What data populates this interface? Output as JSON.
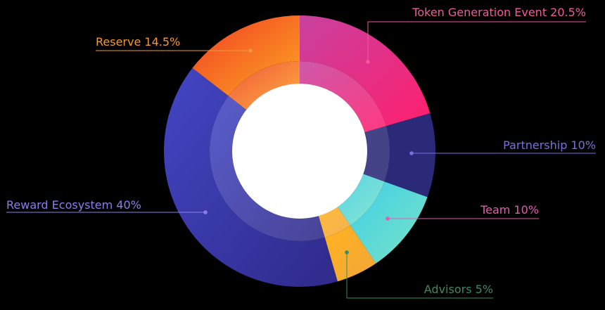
{
  "chart_data": {
    "type": "pie",
    "variant": "donut",
    "title": "",
    "legend": "none",
    "slices": [
      {
        "key": "tge",
        "label": "Token Generation Event  20.5%",
        "value": 20.5,
        "colors": [
          "#c8419f",
          "#ff1f6e"
        ],
        "label_color": "#ef5a9b"
      },
      {
        "key": "partnership",
        "label": "Partnership 10%",
        "value": 10,
        "colors": [
          "#2b2a78",
          "#2b2a78"
        ],
        "label_color": "#7a6fe0"
      },
      {
        "key": "team",
        "label": "Team  10%",
        "value": 10,
        "colors": [
          "#3fcfe6",
          "#7be3c6"
        ],
        "label_color": "#e25db0"
      },
      {
        "key": "advisors",
        "label": "Advisors 5%",
        "value": 5,
        "colors": [
          "#ffb31f",
          "#f2a63a"
        ],
        "label_color": "#3a8a64"
      },
      {
        "key": "reward",
        "label": "Reward Ecosystem 40%",
        "value": 40,
        "colors": [
          "#4346c4",
          "#2f2a8a"
        ],
        "label_color": "#8a7fe8"
      },
      {
        "key": "reserve",
        "label": "Reserve  14.5%",
        "value": 14.5,
        "colors": [
          "#ef3d23",
          "#ffa623"
        ],
        "label_color": "#f29a3a"
      }
    ]
  }
}
